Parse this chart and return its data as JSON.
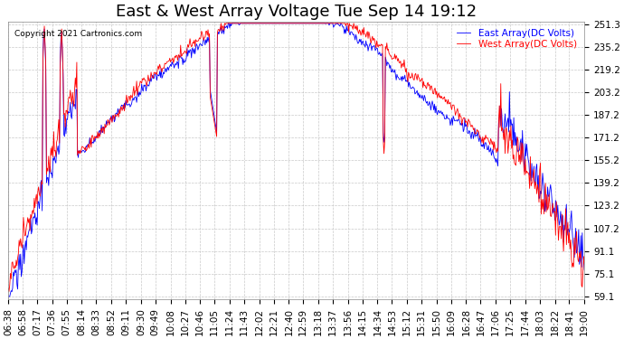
{
  "title": "East & West Array Voltage Tue Sep 14 19:12",
  "copyright": "Copyright 2021 Cartronics.com",
  "legend_east": "East Array(DC Volts)",
  "legend_west": "West Array(DC Volts)",
  "east_color": "#0000ff",
  "west_color": "#ff0000",
  "ylim_min": 59.1,
  "ylim_max": 251.3,
  "yticks": [
    59.1,
    75.1,
    91.1,
    107.2,
    123.2,
    139.2,
    155.2,
    171.2,
    187.2,
    203.2,
    219.2,
    235.2,
    251.3
  ],
  "x_labels": [
    "06:38",
    "06:58",
    "07:17",
    "07:36",
    "07:55",
    "08:14",
    "08:33",
    "08:52",
    "09:11",
    "09:30",
    "09:49",
    "10:08",
    "10:27",
    "10:46",
    "11:05",
    "11:24",
    "11:43",
    "12:02",
    "12:21",
    "12:40",
    "12:59",
    "13:18",
    "13:37",
    "13:56",
    "14:15",
    "14:34",
    "14:53",
    "15:12",
    "15:31",
    "15:50",
    "16:09",
    "16:28",
    "16:47",
    "17:06",
    "17:25",
    "17:44",
    "18:03",
    "18:22",
    "18:41",
    "19:00"
  ],
  "background_color": "#ffffff",
  "grid_color": "#bbbbbb",
  "title_fontsize": 13,
  "tick_fontsize": 7.5
}
